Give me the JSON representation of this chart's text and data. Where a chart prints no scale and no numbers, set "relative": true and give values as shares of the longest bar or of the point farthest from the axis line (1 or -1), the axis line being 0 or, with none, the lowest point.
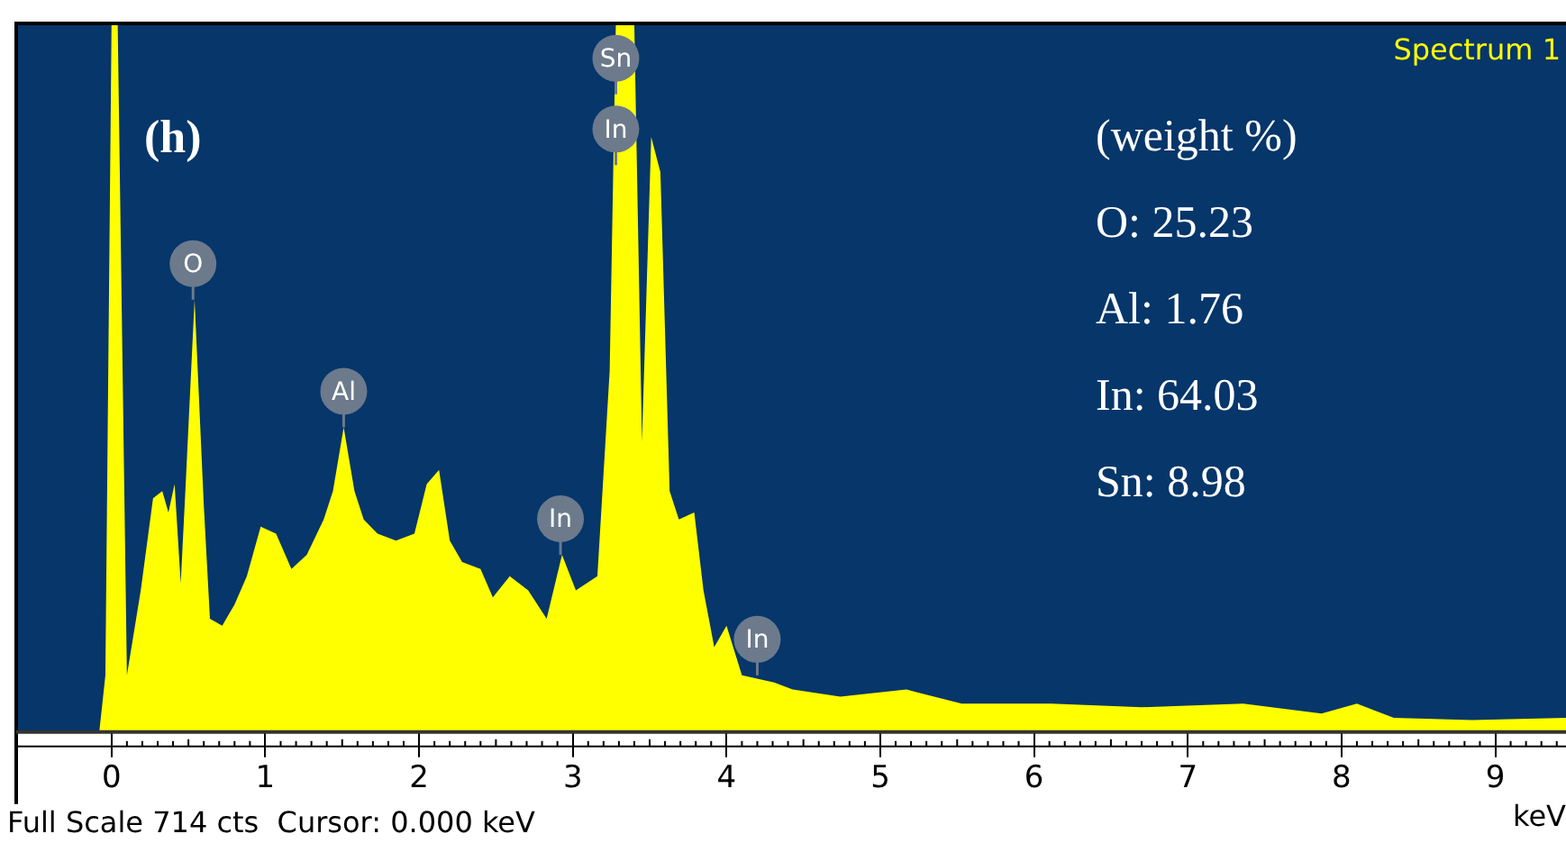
{
  "chart_data": {
    "type": "area",
    "relative": true,
    "xlabel": "keV",
    "color": "#ffff00",
    "x": [
      -0.62,
      -0.08,
      -0.04,
      0.0,
      0.04,
      0.1,
      0.19,
      0.27,
      0.33,
      0.37,
      0.41,
      0.45,
      0.48,
      0.54,
      0.6,
      0.64,
      0.72,
      0.8,
      0.88,
      0.97,
      1.07,
      1.17,
      1.27,
      1.38,
      1.44,
      1.51,
      1.58,
      1.64,
      1.73,
      1.85,
      1.97,
      2.05,
      2.13,
      2.2,
      2.28,
      2.4,
      2.48,
      2.59,
      2.71,
      2.83,
      2.93,
      3.02,
      3.16,
      3.24,
      3.28,
      3.4,
      3.45,
      3.51,
      3.57,
      3.63,
      3.69,
      3.79,
      3.85,
      3.92,
      4.0,
      4.1,
      4.31,
      4.43,
      4.74,
      5.17,
      5.53,
      6.11,
      6.7,
      7.36,
      7.87,
      8.1,
      8.34,
      8.85,
      9.46
    ],
    "values": [
      0,
      0,
      0.08,
      1,
      1,
      0.08,
      0.2,
      0.33,
      0.34,
      0.31,
      0.35,
      0.21,
      0.34,
      0.61,
      0.32,
      0.16,
      0.15,
      0.18,
      0.22,
      0.29,
      0.28,
      0.23,
      0.25,
      0.3,
      0.34,
      0.43,
      0.34,
      0.3,
      0.28,
      0.27,
      0.28,
      0.35,
      0.37,
      0.27,
      0.24,
      0.23,
      0.19,
      0.22,
      0.2,
      0.16,
      0.25,
      0.2,
      0.22,
      0.51,
      1,
      1,
      0.41,
      0.84,
      0.79,
      0.34,
      0.3,
      0.31,
      0.2,
      0.12,
      0.15,
      0.08,
      0.07,
      0.06,
      0.05,
      0.06,
      0.04,
      0.04,
      0.035,
      0.04,
      0.026,
      0.04,
      0.02,
      0.017,
      0.02
    ],
    "xlim": [
      -0.62,
      9.46
    ],
    "xticks": [
      0,
      1,
      2,
      3,
      4,
      5,
      6,
      7,
      8,
      9
    ],
    "grid": false,
    "legend": false,
    "annotations": [
      "(h)",
      "Spectrum 1",
      "(weight %)",
      "O: 25.23",
      "Al: 1.76",
      "In: 64.03",
      "Sn: 8.98",
      "Full Scale 714 cts  Cursor: 0.000 keV",
      {
        "text": "O",
        "x": 0.53,
        "y": 0.61
      },
      {
        "text": "Al",
        "x": 1.51,
        "y": 0.43
      },
      {
        "text": "In",
        "x": 2.92,
        "y": 0.25
      },
      {
        "text": "Sn",
        "x": 3.28,
        "y": 0.9
      },
      {
        "text": "In",
        "x": 3.28,
        "y": 0.8
      },
      {
        "text": "In",
        "x": 4.2,
        "y": 0.08
      }
    ]
  }
}
